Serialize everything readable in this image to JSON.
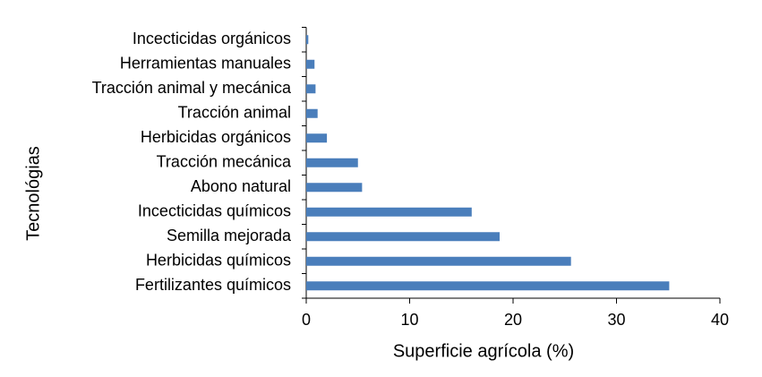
{
  "chart_data": {
    "type": "hbar",
    "xlabel": "Superficie agrícola (%)",
    "ylabel": "Tecnológias",
    "categories": [
      "Incecticidas orgánicos",
      "Herramientas manuales",
      "Tracción animal y mecánica",
      "Tracción animal",
      "Herbicidas orgánicos",
      "Tracción mecánica",
      "Abono natural",
      "Incecticidas químicos",
      "Semilla mejorada",
      "Herbicidas químicos",
      "Fertilizantes químicos"
    ],
    "values": [
      0.2,
      0.8,
      0.9,
      1.1,
      2.0,
      5.0,
      5.4,
      16.0,
      18.7,
      25.6,
      35.1
    ],
    "color": "#4a7ebb",
    "xlim": [
      0,
      40
    ],
    "xticks": [
      0,
      10,
      20,
      30,
      40
    ],
    "grid": false
  }
}
